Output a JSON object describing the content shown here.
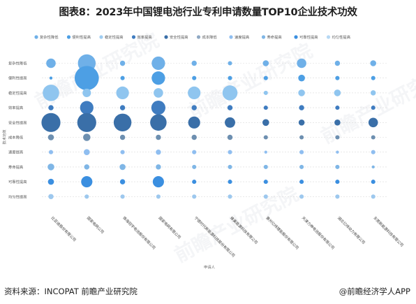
{
  "title": "图表8：2023年中国锂电池行业专利申请数量TOP10企业技术功效",
  "footer": {
    "source": "资料来源：INCOPAT 前瞻产业研究院",
    "brand": "@前瞻经济学人APP"
  },
  "watermark": "前瞻产业研究院",
  "colors": {
    "series": [
      "#6fb0e8",
      "#4d9fe4",
      "#8fc5ef",
      "#3f7cc0",
      "#3a6fa8",
      "#6d8fb0",
      "#8fbef0",
      "#7fb6e6",
      "#3b8fe0",
      "#9dc8ee"
    ],
    "legend_series": [
      "#6fb0e8",
      "#4d9fe4",
      "#9fcdf2",
      "#3f7cc0",
      "#3a6fa8",
      "#8fa9c4",
      "#8fbef0",
      "#7fb6e6",
      "#3b8fe0",
      "#b6d8f4"
    ]
  },
  "chart_data": {
    "type": "scatter",
    "xlabel": "申请人",
    "ylabel": "技术功效",
    "legend": [
      "复杂性降低",
      "便利性提高",
      "稳定性提高",
      "效率提高",
      "安全性提高",
      "成本降低",
      "速度提高",
      "寿命提高",
      "可靠性提高",
      "均匀性提高"
    ],
    "legend_position": "top",
    "y_categories": [
      "复杂性降低",
      "便利性提高",
      "稳定性提高",
      "效率提高",
      "安全性提高",
      "成本降低",
      "速度提高",
      "寿命提高",
      "可靠性提高",
      "均匀性提高"
    ],
    "x_categories": [
      "比亚迪股份有限公司",
      "国家电网公司",
      "珠海冠宇电池股份有限公司",
      "国家电网有限公司",
      "宁德时代新能源科技股份有限公司",
      "蜂巢能源科技有限公司",
      "惠州亿纬锂能股份有限公司",
      "天津力神电池股份有限公司",
      "湖北亿纬动力有限公司",
      "东莞新能源科技有限公司"
    ],
    "values": [
      [
        10,
        35,
        3,
        20,
        3,
        2,
        4,
        10,
        3,
        4
      ],
      [
        1,
        65,
        2,
        20,
        2,
        2,
        2,
        5,
        2,
        2
      ],
      [
        30,
        8,
        18,
        10,
        18,
        25,
        2,
        5,
        5,
        3
      ],
      [
        3,
        20,
        3,
        22,
        3,
        3,
        2,
        3,
        2,
        2
      ],
      [
        40,
        40,
        35,
        30,
        16,
        12,
        5,
        4,
        4,
        10
      ],
      [
        4,
        6,
        3,
        3,
        3,
        3,
        2,
        2,
        2,
        2
      ],
      [
        2,
        4,
        2,
        3,
        2,
        2,
        1,
        2,
        1,
        2
      ],
      [
        5,
        3,
        4,
        3,
        2,
        2,
        2,
        2,
        2,
        1
      ],
      [
        4,
        14,
        3,
        14,
        2,
        2,
        2,
        2,
        2,
        2
      ],
      [
        3,
        2,
        2,
        2,
        2,
        2,
        2,
        2,
        2,
        2
      ]
    ]
  }
}
